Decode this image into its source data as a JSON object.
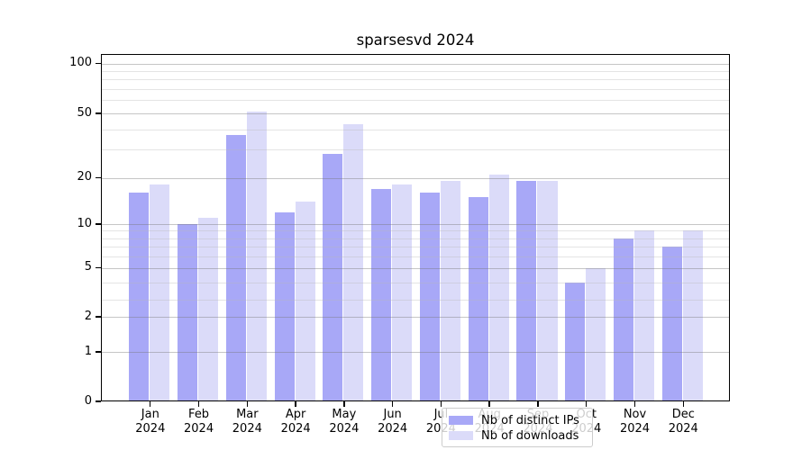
{
  "title": "sparsesvd 2024",
  "chart_data": {
    "type": "bar",
    "title": "sparsesvd 2024",
    "categories": [
      "Jan 2024",
      "Feb 2024",
      "Mar 2024",
      "Apr 2024",
      "May 2024",
      "Jun 2024",
      "Jul 2024",
      "Aug 2024",
      "Sep 2024",
      "Oct 2024",
      "Nov 2024",
      "Dec 2024"
    ],
    "series": [
      {
        "name": "Nb of distinct IPs",
        "color": "#a8a8f7",
        "values": [
          16,
          10,
          37,
          12,
          28,
          17,
          16,
          15,
          19,
          4,
          8,
          7
        ]
      },
      {
        "name": "Nb of downloads",
        "color": "#dbdbf9",
        "values": [
          18,
          11,
          51,
          14,
          43,
          18,
          19,
          21,
          19,
          5,
          9,
          9
        ]
      }
    ],
    "xlabel": "",
    "ylabel": "",
    "y_axis": {
      "scale": "symlog",
      "ticks": [
        0,
        1,
        2,
        5,
        10,
        20,
        50,
        100
      ],
      "minor_gridlines": [
        3,
        4,
        6,
        7,
        8,
        9,
        30,
        40,
        60,
        70,
        80,
        90
      ],
      "range": [
        0,
        110
      ]
    },
    "legend": {
      "position": "lower center",
      "entries": [
        "Nb of distinct IPs",
        "Nb of downloads"
      ]
    },
    "grid": true
  },
  "colors": {
    "bar_distinct_ips": "#a8a8f7",
    "bar_downloads": "#dbdbf9",
    "major_grid": "rgba(120,120,120,0.42)",
    "minor_grid": "rgba(185,185,185,0.38)",
    "axis": "#000000",
    "legend_border": "#cccccc",
    "background": "#ffffff"
  }
}
